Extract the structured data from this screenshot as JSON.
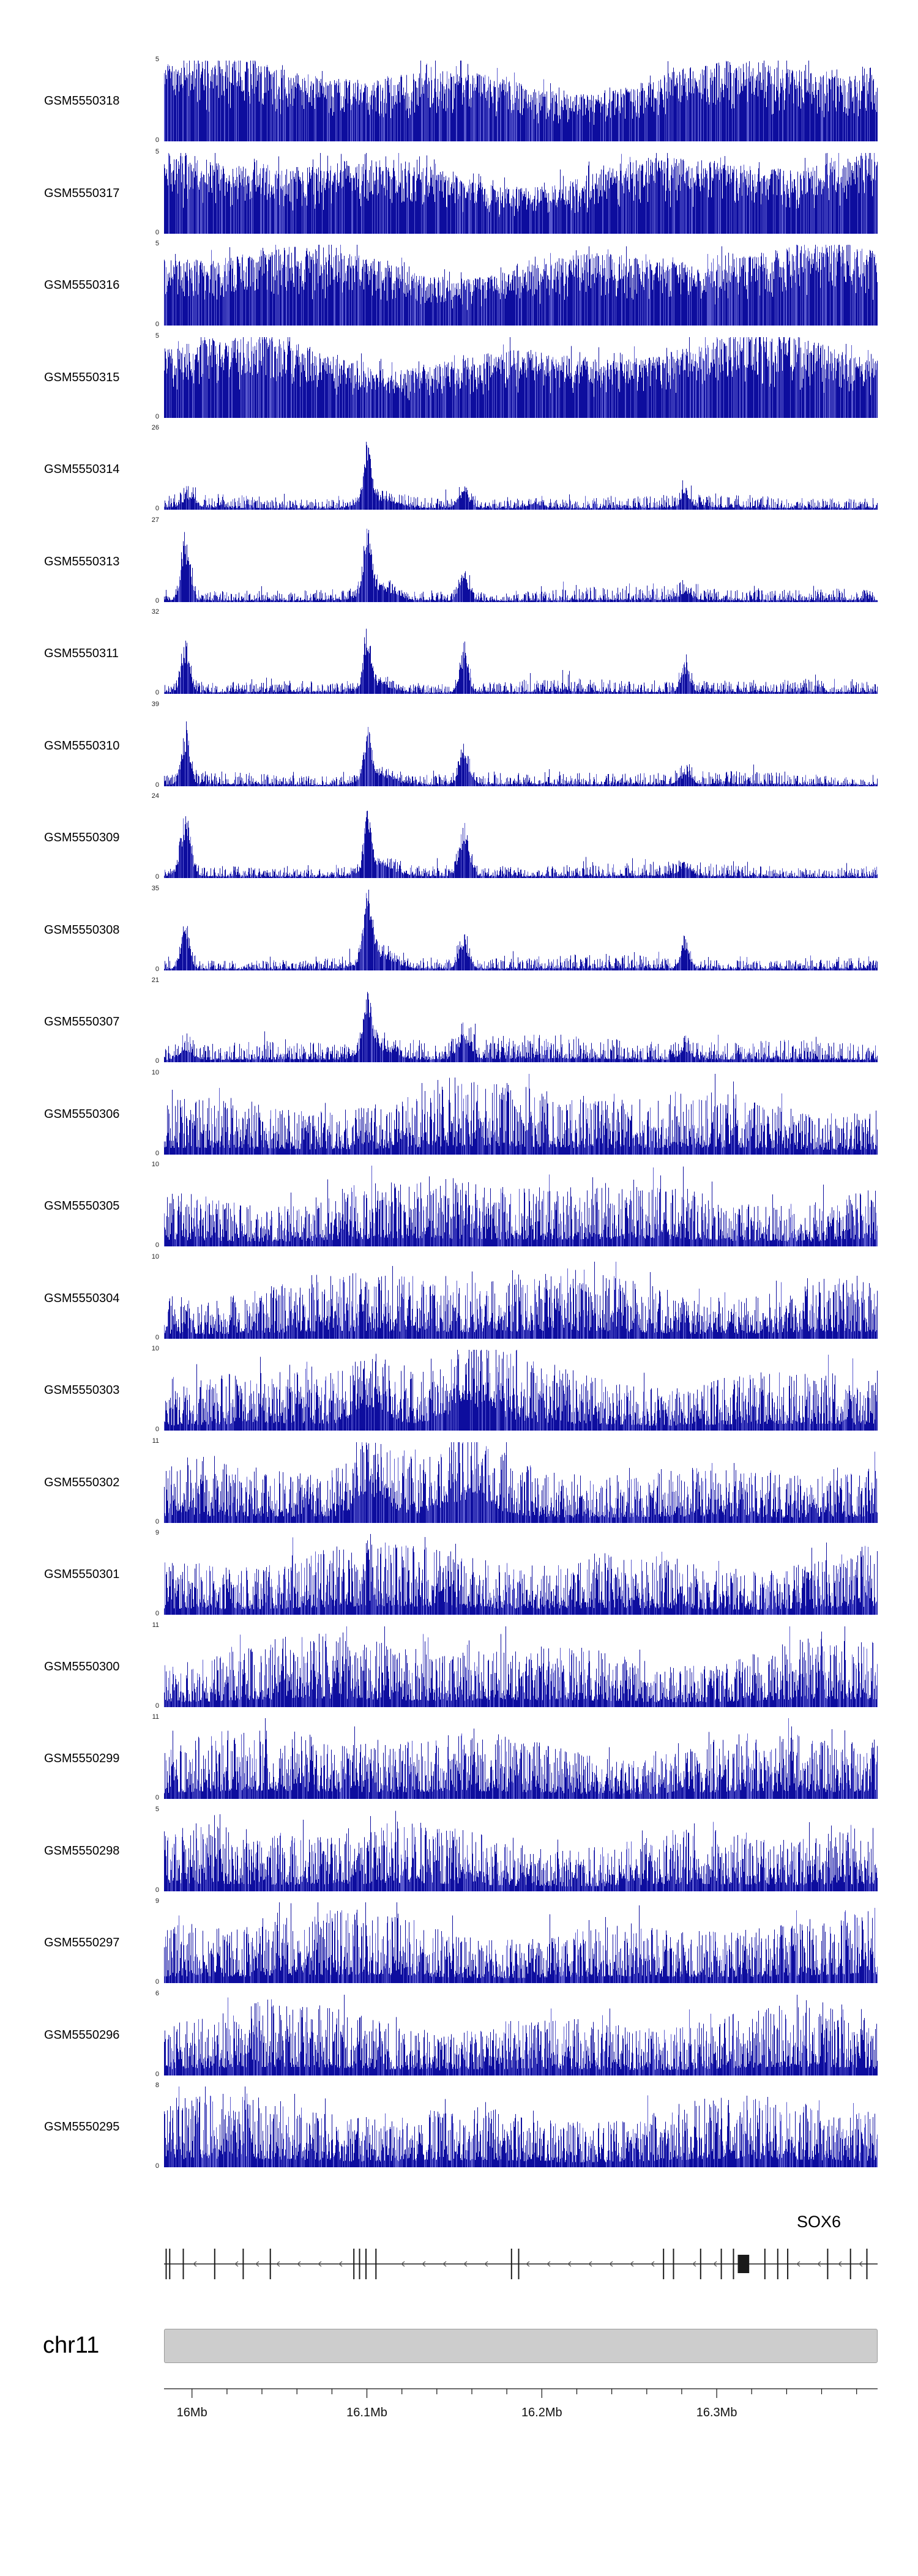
{
  "colors": {
    "signal": "#0d0d9e",
    "signal_light": "#5a5ace",
    "gene": "#1a1a1a",
    "arrow": "#555555",
    "ideogram_fill": "#cdcdcd",
    "axis": "#111111"
  },
  "chart_data": {
    "type": "area",
    "subtype": "genome-browser-signal-tracks",
    "region": {
      "chromosome": "chr11",
      "start_mb": 15.984,
      "end_mb": 16.392
    },
    "x_axis": {
      "major_ticks": [
        {
          "mb": 16.0,
          "label": "16Mb"
        },
        {
          "mb": 16.1,
          "label": "16.1Mb"
        },
        {
          "mb": 16.2,
          "label": "16.2Mb"
        },
        {
          "mb": 16.3,
          "label": "16.3Mb"
        }
      ],
      "minor_tick_interval_mb": 0.02
    },
    "gene_track": {
      "gene_label": "SOX6",
      "strand": "minus",
      "exons": [
        {
          "x": 0.003
        },
        {
          "x": 0.008
        },
        {
          "x": 0.027
        },
        {
          "x": 0.071
        },
        {
          "x": 0.111
        },
        {
          "x": 0.149
        },
        {
          "x": 0.266
        },
        {
          "x": 0.274
        },
        {
          "x": 0.283
        },
        {
          "x": 0.297
        },
        {
          "x": 0.487
        },
        {
          "x": 0.497
        },
        {
          "x": 0.7
        },
        {
          "x": 0.714
        },
        {
          "x": 0.752
        },
        {
          "x": 0.781
        },
        {
          "x": 0.798
        },
        {
          "x": 0.842
        },
        {
          "x": 0.86
        },
        {
          "x": 0.874
        },
        {
          "x": 0.93
        },
        {
          "x": 0.962
        },
        {
          "x": 0.985
        }
      ],
      "thick_exon": {
        "x": 0.812,
        "w": 0.016
      }
    },
    "render_profiles": {
      "dense": {
        "base": 0.32,
        "amp": 0.68,
        "exp": 0.55,
        "spike_p": 0.1,
        "spike_h": 0.25
      },
      "medium": {
        "base": 0.1,
        "amp": 0.78,
        "exp": 1.7,
        "spike_p": 0.07,
        "spike_h": 0.35
      },
      "peaky": {
        "base": 0.025,
        "amp": 0.17,
        "exp": 2.6,
        "spike_p": 0.05,
        "spike_h": 0.12
      }
    },
    "tracks": [
      {
        "label": "GSM5550318",
        "y_min": 0,
        "y_max": 5,
        "profile": "dense",
        "seed": 101,
        "peaks": []
      },
      {
        "label": "GSM5550317",
        "y_min": 0,
        "y_max": 5,
        "profile": "dense",
        "seed": 102,
        "peaks": []
      },
      {
        "label": "GSM5550316",
        "y_min": 0,
        "y_max": 5,
        "profile": "dense",
        "seed": 103,
        "peaks": []
      },
      {
        "label": "GSM5550315",
        "y_min": 0,
        "y_max": 5,
        "profile": "dense",
        "seed": 104,
        "peaks": []
      },
      {
        "label": "GSM5550314",
        "y_min": 0,
        "y_max": 26,
        "profile": "peaky",
        "seed": 105,
        "peaks": [
          {
            "x": 0.285,
            "h": 1.05,
            "w": 0.005
          },
          {
            "x": 0.3,
            "h": 0.22,
            "w": 0.022
          },
          {
            "x": 0.035,
            "h": 0.14,
            "w": 0.009
          },
          {
            "x": 0.42,
            "h": 0.26,
            "w": 0.008
          },
          {
            "x": 0.52,
            "h": 0.1,
            "w": 0.01
          },
          {
            "x": 0.73,
            "h": 0.18,
            "w": 0.006
          }
        ]
      },
      {
        "label": "GSM5550313",
        "y_min": 0,
        "y_max": 27,
        "profile": "peaky",
        "seed": 106,
        "peaks": [
          {
            "x": 0.03,
            "h": 0.88,
            "w": 0.006
          },
          {
            "x": 0.285,
            "h": 1.05,
            "w": 0.005
          },
          {
            "x": 0.3,
            "h": 0.25,
            "w": 0.02
          },
          {
            "x": 0.42,
            "h": 0.55,
            "w": 0.007
          },
          {
            "x": 0.73,
            "h": 0.12,
            "w": 0.009
          }
        ]
      },
      {
        "label": "GSM5550311",
        "y_min": 0,
        "y_max": 32,
        "profile": "peaky",
        "seed": 107,
        "peaks": [
          {
            "x": 0.03,
            "h": 0.82,
            "w": 0.006
          },
          {
            "x": 0.285,
            "h": 1.05,
            "w": 0.005
          },
          {
            "x": 0.3,
            "h": 0.2,
            "w": 0.02
          },
          {
            "x": 0.42,
            "h": 0.88,
            "w": 0.006
          },
          {
            "x": 0.73,
            "h": 0.5,
            "w": 0.006
          }
        ]
      },
      {
        "label": "GSM5550310",
        "y_min": 0,
        "y_max": 39,
        "profile": "peaky",
        "seed": 108,
        "peaks": [
          {
            "x": 0.03,
            "h": 0.78,
            "w": 0.006
          },
          {
            "x": 0.285,
            "h": 1.05,
            "w": 0.005
          },
          {
            "x": 0.3,
            "h": 0.3,
            "w": 0.02
          },
          {
            "x": 0.42,
            "h": 0.45,
            "w": 0.007
          },
          {
            "x": 0.73,
            "h": 0.16,
            "w": 0.008
          }
        ]
      },
      {
        "label": "GSM5550309",
        "y_min": 0,
        "y_max": 24,
        "profile": "peaky",
        "seed": 109,
        "peaks": [
          {
            "x": 0.03,
            "h": 0.86,
            "w": 0.007
          },
          {
            "x": 0.285,
            "h": 1.05,
            "w": 0.005
          },
          {
            "x": 0.3,
            "h": 0.22,
            "w": 0.02
          },
          {
            "x": 0.42,
            "h": 0.72,
            "w": 0.007
          },
          {
            "x": 0.73,
            "h": 0.15,
            "w": 0.008
          }
        ]
      },
      {
        "label": "GSM5550308",
        "y_min": 0,
        "y_max": 35,
        "profile": "peaky",
        "seed": 110,
        "peaks": [
          {
            "x": 0.03,
            "h": 0.8,
            "w": 0.006
          },
          {
            "x": 0.285,
            "h": 1.05,
            "w": 0.006
          },
          {
            "x": 0.3,
            "h": 0.26,
            "w": 0.02
          },
          {
            "x": 0.42,
            "h": 0.5,
            "w": 0.007
          },
          {
            "x": 0.73,
            "h": 0.45,
            "w": 0.006
          }
        ]
      },
      {
        "label": "GSM5550307",
        "y_min": 0,
        "y_max": 21,
        "profile": "peaky",
        "seed": 111,
        "noise_scale": 1.7,
        "peaks": [
          {
            "x": 0.285,
            "h": 1.0,
            "w": 0.006
          },
          {
            "x": 0.3,
            "h": 0.3,
            "w": 0.02
          },
          {
            "x": 0.42,
            "h": 0.32,
            "w": 0.009
          },
          {
            "x": 0.03,
            "h": 0.22,
            "w": 0.009
          },
          {
            "x": 0.73,
            "h": 0.18,
            "w": 0.008
          }
        ]
      },
      {
        "label": "GSM5550306",
        "y_min": 0,
        "y_max": 10,
        "profile": "medium",
        "seed": 112,
        "peaks": []
      },
      {
        "label": "GSM5550305",
        "y_min": 0,
        "y_max": 10,
        "profile": "medium",
        "seed": 113,
        "peaks": []
      },
      {
        "label": "GSM5550304",
        "y_min": 0,
        "y_max": 10,
        "profile": "medium",
        "seed": 114,
        "peaks": []
      },
      {
        "label": "GSM5550303",
        "y_min": 0,
        "y_max": 10,
        "profile": "medium",
        "seed": 115,
        "peaks": [
          {
            "x": 0.29,
            "h": 0.45,
            "w": 0.02
          },
          {
            "x": 0.43,
            "h": 0.35,
            "w": 0.03
          }
        ]
      },
      {
        "label": "GSM5550302",
        "y_min": 0,
        "y_max": 11,
        "profile": "medium",
        "seed": 116,
        "peaks": [
          {
            "x": 0.29,
            "h": 0.4,
            "w": 0.02
          },
          {
            "x": 0.43,
            "h": 0.3,
            "w": 0.03
          }
        ]
      },
      {
        "label": "GSM5550301",
        "y_min": 0,
        "y_max": 9,
        "profile": "medium",
        "seed": 117,
        "peaks": []
      },
      {
        "label": "GSM5550300",
        "y_min": 0,
        "y_max": 11,
        "profile": "medium",
        "seed": 118,
        "peaks": []
      },
      {
        "label": "GSM5550299",
        "y_min": 0,
        "y_max": 11,
        "profile": "medium",
        "seed": 119,
        "peaks": []
      },
      {
        "label": "GSM5550298",
        "y_min": 0,
        "y_max": 5,
        "profile": "medium",
        "seed": 120,
        "peaks": []
      },
      {
        "label": "GSM5550297",
        "y_min": 0,
        "y_max": 9,
        "profile": "medium",
        "seed": 121,
        "peaks": []
      },
      {
        "label": "GSM5550296",
        "y_min": 0,
        "y_max": 6,
        "profile": "medium",
        "seed": 122,
        "peaks": []
      },
      {
        "label": "GSM5550295",
        "y_min": 0,
        "y_max": 8,
        "profile": "medium",
        "seed": 123,
        "peaks": []
      }
    ]
  }
}
